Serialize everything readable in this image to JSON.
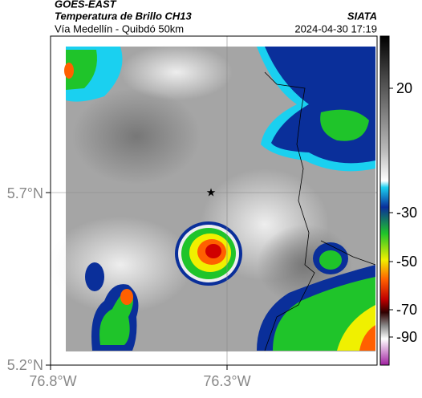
{
  "header": {
    "source": "GOES-EAST",
    "title": "Temperatura de Brillo CH13",
    "org": "SIATA",
    "subtitle": "Vía Medellín - Quibdó 50km",
    "timestamp": "2024-04-30 17:19"
  },
  "map": {
    "lat_labels": [
      "5.7°N",
      "5.2°N"
    ],
    "lon_labels": [
      "76.8°W",
      "76.3°W"
    ],
    "colorbar_labels": [
      "20",
      "-30",
      "-50",
      "-70",
      "-90"
    ]
  }
}
